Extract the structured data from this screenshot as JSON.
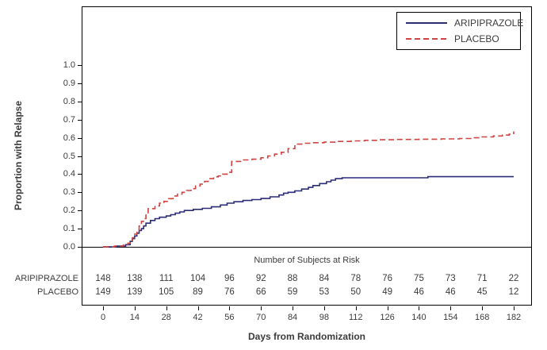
{
  "figure": {
    "y_axis": {
      "label": "Proportion with Relapse",
      "ticks": [
        "0.0",
        "0.1",
        "0.2",
        "0.3",
        "0.4",
        "0.5",
        "0.6",
        "0.7",
        "0.8",
        "0.9",
        "1.0"
      ]
    },
    "x_axis": {
      "label": "Days from Randomization",
      "ticks": [
        0,
        14,
        28,
        42,
        56,
        70,
        84,
        98,
        112,
        126,
        140,
        154,
        168,
        182
      ]
    },
    "legend": {
      "items": [
        {
          "label": "ARIPIPRAZOLE",
          "color": "#2b2d77",
          "style": "solid"
        },
        {
          "label": "PLACEBO",
          "color": "#cf4343",
          "style": "dashed"
        }
      ]
    },
    "risk_table": {
      "title": "Number of Subjects at Risk",
      "rows": [
        {
          "label": "ARIPIPRAZOLE",
          "values": [
            148,
            138,
            111,
            104,
            96,
            92,
            88,
            84,
            78,
            76,
            75,
            73,
            71,
            22
          ]
        },
        {
          "label": "PLACEBO",
          "values": [
            149,
            139,
            105,
            89,
            76,
            66,
            59,
            53,
            50,
            49,
            46,
            46,
            45,
            12
          ]
        }
      ]
    }
  },
  "chart_data": {
    "type": "line",
    "subtype": "kaplan-meier-step",
    "title": "",
    "xlabel": "Days from Randomization",
    "ylabel": "Proportion with Relapse",
    "xlim": [
      0,
      182
    ],
    "ylim": [
      0,
      1.0
    ],
    "x_ticks": [
      0,
      14,
      28,
      42,
      56,
      70,
      84,
      98,
      112,
      126,
      140,
      154,
      168,
      182
    ],
    "y_ticks": [
      0,
      0.1,
      0.2,
      0.3,
      0.4,
      0.5,
      0.6,
      0.7,
      0.8,
      0.9,
      1.0
    ],
    "grid": false,
    "legend_position": "top-right-inside",
    "series": [
      {
        "name": "ARIPIPRAZOLE",
        "color": "#2b2d77",
        "line_style": "solid",
        "step": "after",
        "points": [
          [
            0,
            0
          ],
          [
            6,
            0.004
          ],
          [
            10,
            0.012
          ],
          [
            12,
            0.03
          ],
          [
            13,
            0.045
          ],
          [
            14,
            0.06
          ],
          [
            15,
            0.075
          ],
          [
            16,
            0.09
          ],
          [
            17,
            0.1
          ],
          [
            18,
            0.115
          ],
          [
            19,
            0.13
          ],
          [
            21,
            0.145
          ],
          [
            23,
            0.155
          ],
          [
            25,
            0.163
          ],
          [
            28,
            0.17
          ],
          [
            30,
            0.177
          ],
          [
            32,
            0.185
          ],
          [
            34,
            0.192
          ],
          [
            36,
            0.2
          ],
          [
            40,
            0.206
          ],
          [
            44,
            0.212
          ],
          [
            48,
            0.22
          ],
          [
            52,
            0.23
          ],
          [
            55,
            0.24
          ],
          [
            58,
            0.248
          ],
          [
            62,
            0.255
          ],
          [
            66,
            0.26
          ],
          [
            70,
            0.266
          ],
          [
            74,
            0.275
          ],
          [
            78,
            0.285
          ],
          [
            80,
            0.295
          ],
          [
            82,
            0.3
          ],
          [
            85,
            0.308
          ],
          [
            88,
            0.318
          ],
          [
            91,
            0.327
          ],
          [
            93,
            0.337
          ],
          [
            96,
            0.348
          ],
          [
            99,
            0.358
          ],
          [
            101,
            0.367
          ],
          [
            103,
            0.375
          ],
          [
            106,
            0.38
          ],
          [
            144,
            0.386
          ],
          [
            182,
            0.386
          ]
        ]
      },
      {
        "name": "PLACEBO",
        "color": "#cf4343",
        "line_style": "dashed",
        "step": "after",
        "points": [
          [
            0,
            0
          ],
          [
            5,
            0.004
          ],
          [
            9,
            0.01
          ],
          [
            11,
            0.02
          ],
          [
            12,
            0.035
          ],
          [
            13,
            0.05
          ],
          [
            14,
            0.07
          ],
          [
            15,
            0.09
          ],
          [
            16,
            0.115
          ],
          [
            17,
            0.14
          ],
          [
            18,
            0.155
          ],
          [
            19,
            0.175
          ],
          [
            20,
            0.21
          ],
          [
            23,
            0.225
          ],
          [
            25,
            0.24
          ],
          [
            27,
            0.25
          ],
          [
            29,
            0.265
          ],
          [
            31,
            0.28
          ],
          [
            33,
            0.29
          ],
          [
            35,
            0.3
          ],
          [
            37,
            0.31
          ],
          [
            39,
            0.32
          ],
          [
            41,
            0.335
          ],
          [
            43,
            0.345
          ],
          [
            45,
            0.36
          ],
          [
            47,
            0.375
          ],
          [
            49,
            0.385
          ],
          [
            51,
            0.39
          ],
          [
            53,
            0.4
          ],
          [
            55,
            0.41
          ],
          [
            57,
            0.47
          ],
          [
            61,
            0.478
          ],
          [
            66,
            0.482
          ],
          [
            70,
            0.49
          ],
          [
            73,
            0.5
          ],
          [
            76,
            0.51
          ],
          [
            79,
            0.52
          ],
          [
            82,
            0.54
          ],
          [
            85,
            0.565
          ],
          [
            89,
            0.57
          ],
          [
            93,
            0.573
          ],
          [
            98,
            0.576
          ],
          [
            104,
            0.58
          ],
          [
            110,
            0.583
          ],
          [
            116,
            0.586
          ],
          [
            122,
            0.589
          ],
          [
            130,
            0.591
          ],
          [
            140,
            0.592
          ],
          [
            150,
            0.594
          ],
          [
            158,
            0.596
          ],
          [
            163,
            0.6
          ],
          [
            168,
            0.605
          ],
          [
            173,
            0.61
          ],
          [
            177,
            0.615
          ],
          [
            180,
            0.62
          ],
          [
            182,
            0.635
          ]
        ]
      }
    ],
    "number_at_risk": {
      "title": "Number of Subjects at Risk",
      "times": [
        0,
        14,
        28,
        42,
        56,
        70,
        84,
        98,
        112,
        126,
        140,
        154,
        168,
        182
      ],
      "ARIPIPRAZOLE": [
        148,
        138,
        111,
        104,
        96,
        92,
        88,
        84,
        78,
        76,
        75,
        73,
        71,
        22
      ],
      "PLACEBO": [
        149,
        139,
        105,
        89,
        76,
        66,
        59,
        53,
        50,
        49,
        46,
        46,
        45,
        12
      ]
    }
  }
}
